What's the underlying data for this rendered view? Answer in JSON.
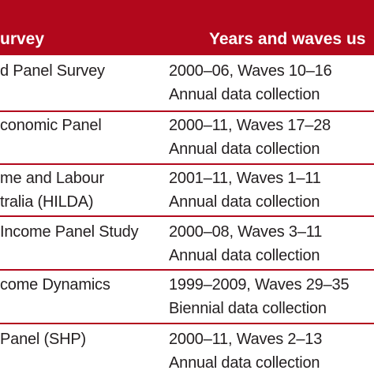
{
  "table": {
    "headers": [
      "urvey",
      "Years and waves us"
    ],
    "rows": [
      {
        "survey": "d Panel Survey",
        "years": "2000–06, Waves 10–16",
        "collection": "Annual data collection"
      },
      {
        "survey": "conomic Panel",
        "years": "2000–11, Waves 17–28",
        "collection": "Annual data collection"
      },
      {
        "survey_line1": "me and Labour",
        "survey_line2": "tralia (HILDA)",
        "years": "2001–11, Waves 1–11",
        "collection": "Annual data collection"
      },
      {
        "survey": "Income Panel Study",
        "years": "2000–08, Waves 3–11",
        "collection": "Annual data collection"
      },
      {
        "survey": "come Dynamics",
        "years": "1999–2009, Waves 29–35",
        "collection": "Biennial data collection"
      },
      {
        "survey": "Panel (SHP)",
        "years": "2000–11, Waves 2–13",
        "collection": "Annual data collection"
      }
    ]
  },
  "colors": {
    "header_bg": "#b2081c",
    "header_text": "#ffffff",
    "divider": "#b2081c",
    "body_text": "#231f20"
  }
}
